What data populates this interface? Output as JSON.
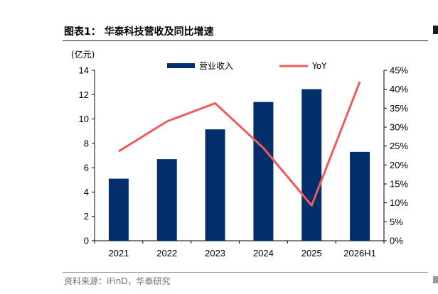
{
  "figure": {
    "title": "图表1： 华泰科技营收及同比增速",
    "source": "资料来源：iFinD，华泰研究"
  },
  "chart_data": {
    "type": "bar",
    "categories": [
      "2021",
      "2022",
      "2023",
      "2024",
      "2025",
      "2026H1"
    ],
    "y_unit": "(亿元)",
    "ylim": [
      0,
      14
    ],
    "y_ticks": [
      "0",
      "2",
      "4",
      "6",
      "8",
      "10",
      "12",
      "14"
    ],
    "y2lim": [
      0,
      45
    ],
    "y2_ticks": [
      "0%",
      "5%",
      "10%",
      "15%",
      "20%",
      "25%",
      "30%",
      "35%",
      "40%",
      "45%"
    ],
    "series": [
      {
        "name": "营业收入",
        "kind": "bar",
        "axis": "left",
        "color": "#002f6c",
        "values": [
          5.1,
          6.7,
          9.15,
          11.4,
          12.45,
          7.3
        ]
      },
      {
        "name": "YoY",
        "kind": "line",
        "axis": "right",
        "color": "#f05a5a",
        "values": [
          23.6,
          31.5,
          36.3,
          24.5,
          9.3,
          42.0
        ]
      }
    ],
    "grid": false,
    "legend_position": "top"
  }
}
